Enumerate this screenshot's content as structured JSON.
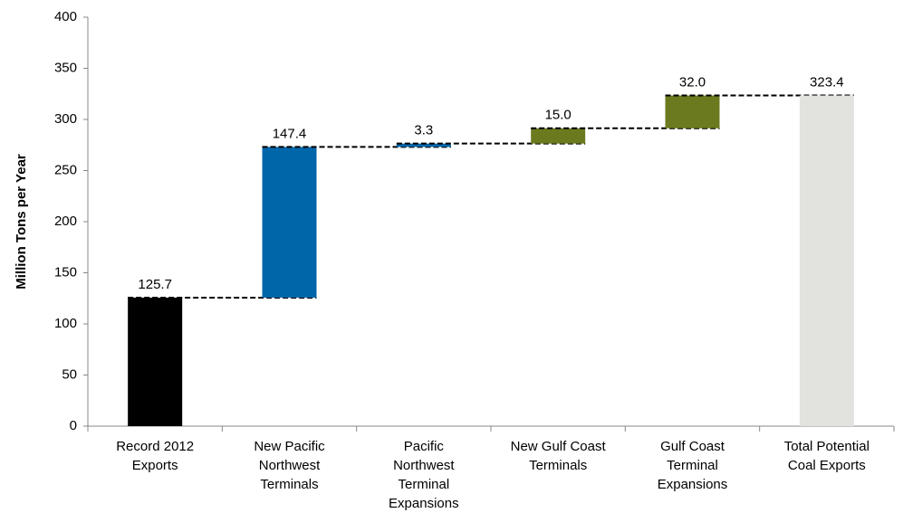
{
  "chart_data": {
    "type": "waterfall",
    "y_label": "Million Tons per Year",
    "categories": [
      "Record 2012 Exports",
      "New Pacific Northwest Terminals",
      "Pacific Northwest Terminal Expansions",
      "New Gulf Coast Terminals",
      "Gulf Coast Terminal Expansions",
      "Total Potential Coal Exports"
    ],
    "values": [
      125.7,
      147.4,
      3.3,
      15,
      32,
      323.4
    ],
    "value_labels": [
      "125.7",
      "147.4",
      "3.3",
      "15.0",
      "32.0",
      "323.4"
    ],
    "measures": [
      "absolute",
      "relative",
      "relative",
      "relative",
      "relative",
      "total"
    ],
    "colors": [
      "#000000",
      "#0066aa",
      "#0066aa",
      "#6b7a1f",
      "#6b7a1f",
      "#e2e2de"
    ],
    "ylim": [
      0,
      400
    ],
    "yticks": [
      0,
      50,
      100,
      150,
      200,
      250,
      300,
      350,
      400
    ]
  }
}
